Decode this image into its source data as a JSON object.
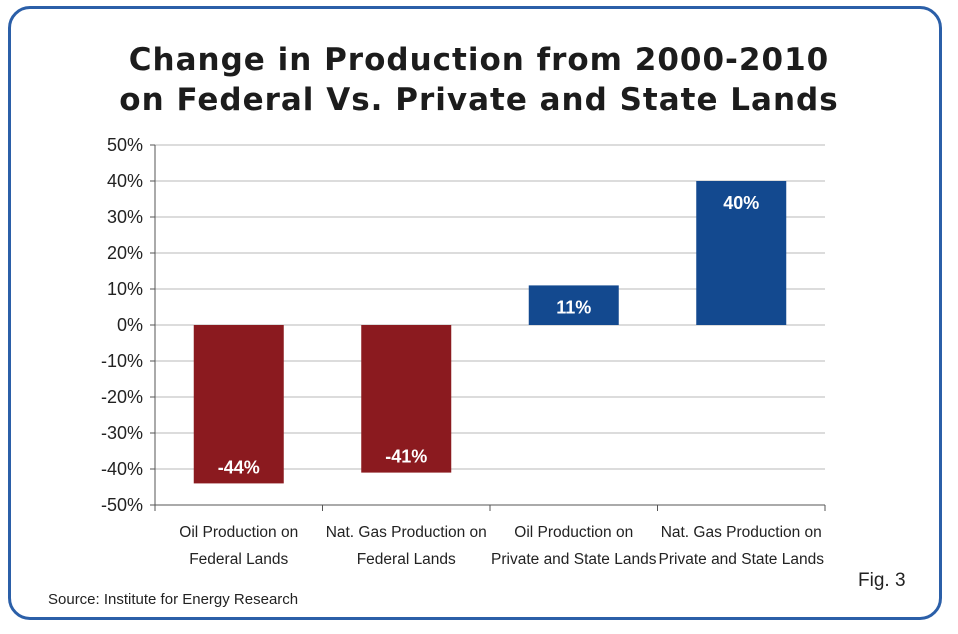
{
  "chart_data": {
    "type": "bar",
    "title_lines": [
      "Change in Production from 2000-2010",
      "on Federal Vs. Private and State Lands"
    ],
    "categories": [
      [
        "Oil Production on",
        "Federal Lands"
      ],
      [
        "Nat. Gas Production on",
        "Federal Lands"
      ],
      [
        "Oil Production on",
        "Private and State Lands"
      ],
      [
        "Nat. Gas Production on",
        "Private and State Lands"
      ]
    ],
    "values": [
      -44,
      -41,
      11,
      40
    ],
    "bar_labels": [
      "-44%",
      "-41%",
      "11%",
      "40%"
    ],
    "bar_colors": [
      "#8b1a1f",
      "#8b1a1f",
      "#13498f",
      "#13498f"
    ],
    "ylim": [
      -50,
      50
    ],
    "yticks": [
      50,
      40,
      30,
      20,
      10,
      0,
      -10,
      -20,
      -30,
      -40,
      -50
    ],
    "ytick_labels": [
      "50%",
      "40%",
      "30%",
      "20%",
      "10%",
      "0%",
      "-10%",
      "-20%",
      "-30%",
      "-40%",
      "-50%"
    ],
    "grid": true,
    "xlabel": "",
    "ylabel": ""
  },
  "source": "Source:  Institute for Energy Research",
  "figure_label": "Fig. 3",
  "colors": {
    "frame": "#2b5fa8",
    "negative_bar": "#8b1a1f",
    "positive_bar": "#13498f"
  }
}
